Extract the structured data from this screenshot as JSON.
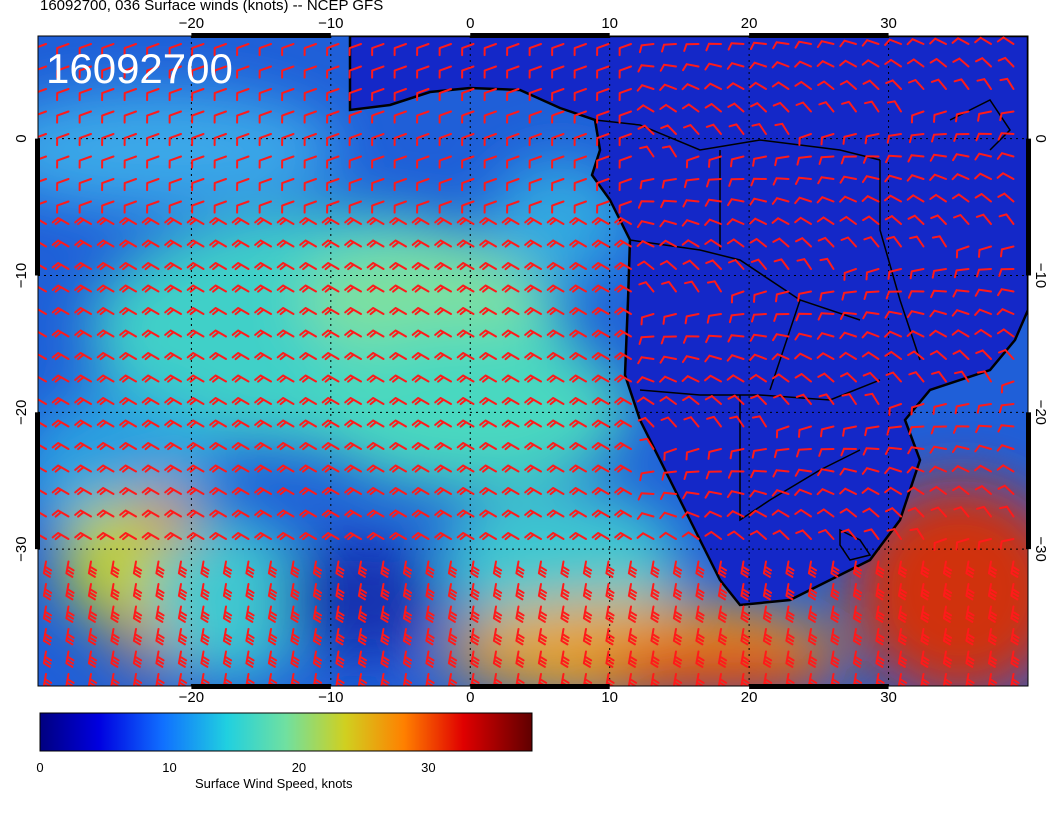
{
  "title": "16092700, 036 Surface winds (knots) -- NCEP GFS",
  "stamp": "16092700",
  "map": {
    "lon_range": [
      -31,
      40
    ],
    "lat_range": [
      -40,
      7.5
    ],
    "lon_ticks": [
      "−20",
      "−10",
      "0",
      "10",
      "20",
      "30"
    ],
    "lat_ticks": [
      "0",
      "−10",
      "−20",
      "−30"
    ],
    "grid": "dotted",
    "barb_color": "#ff0000"
  },
  "colorbar": {
    "title": "Surface Wind Speed, knots",
    "ticks": [
      "0",
      "10",
      "20",
      "30"
    ],
    "range": [
      0,
      38
    ]
  }
}
